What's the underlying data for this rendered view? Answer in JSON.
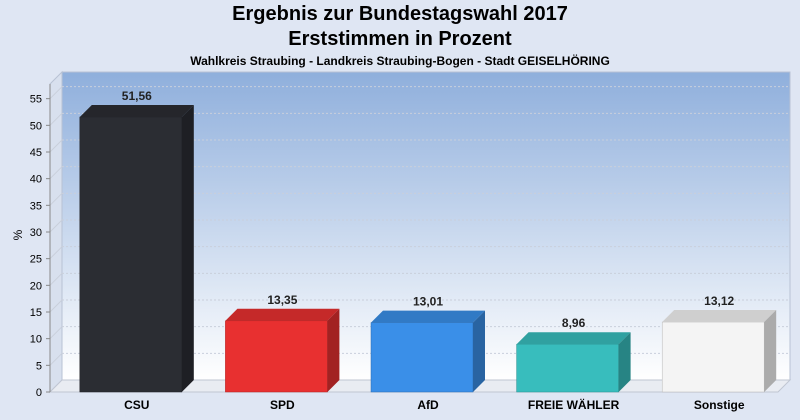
{
  "header": {
    "title": "Ergebnis zur Bundestagswahl 2017",
    "subtitle": "Erststimmen in Prozent",
    "region": "Wahlkreis Straubing - Landkreis Straubing-Bogen - Stadt GEISELHÖRING"
  },
  "chart_data": {
    "type": "bar",
    "title": "Ergebnis zur Bundestagswahl 2017",
    "subtitle": "Erststimmen in Prozent",
    "xlabel": "",
    "ylabel": "%",
    "ylim": [
      0,
      60
    ],
    "yticks": [
      0,
      5,
      10,
      15,
      20,
      25,
      30,
      35,
      40,
      45,
      50,
      55
    ],
    "grid": true,
    "categories": [
      "CSU",
      "SPD",
      "AfD",
      "FREIE WÄHLER",
      "Sonstige"
    ],
    "values": [
      51.56,
      13.35,
      13.01,
      8.96,
      13.12
    ],
    "value_labels": [
      "51,56",
      "13,35",
      "13,01",
      "8,96",
      "13,12"
    ],
    "colors": [
      "#2b2d33",
      "#e83030",
      "#3a8fe8",
      "#38bdbd",
      "#f4f4f4"
    ]
  }
}
